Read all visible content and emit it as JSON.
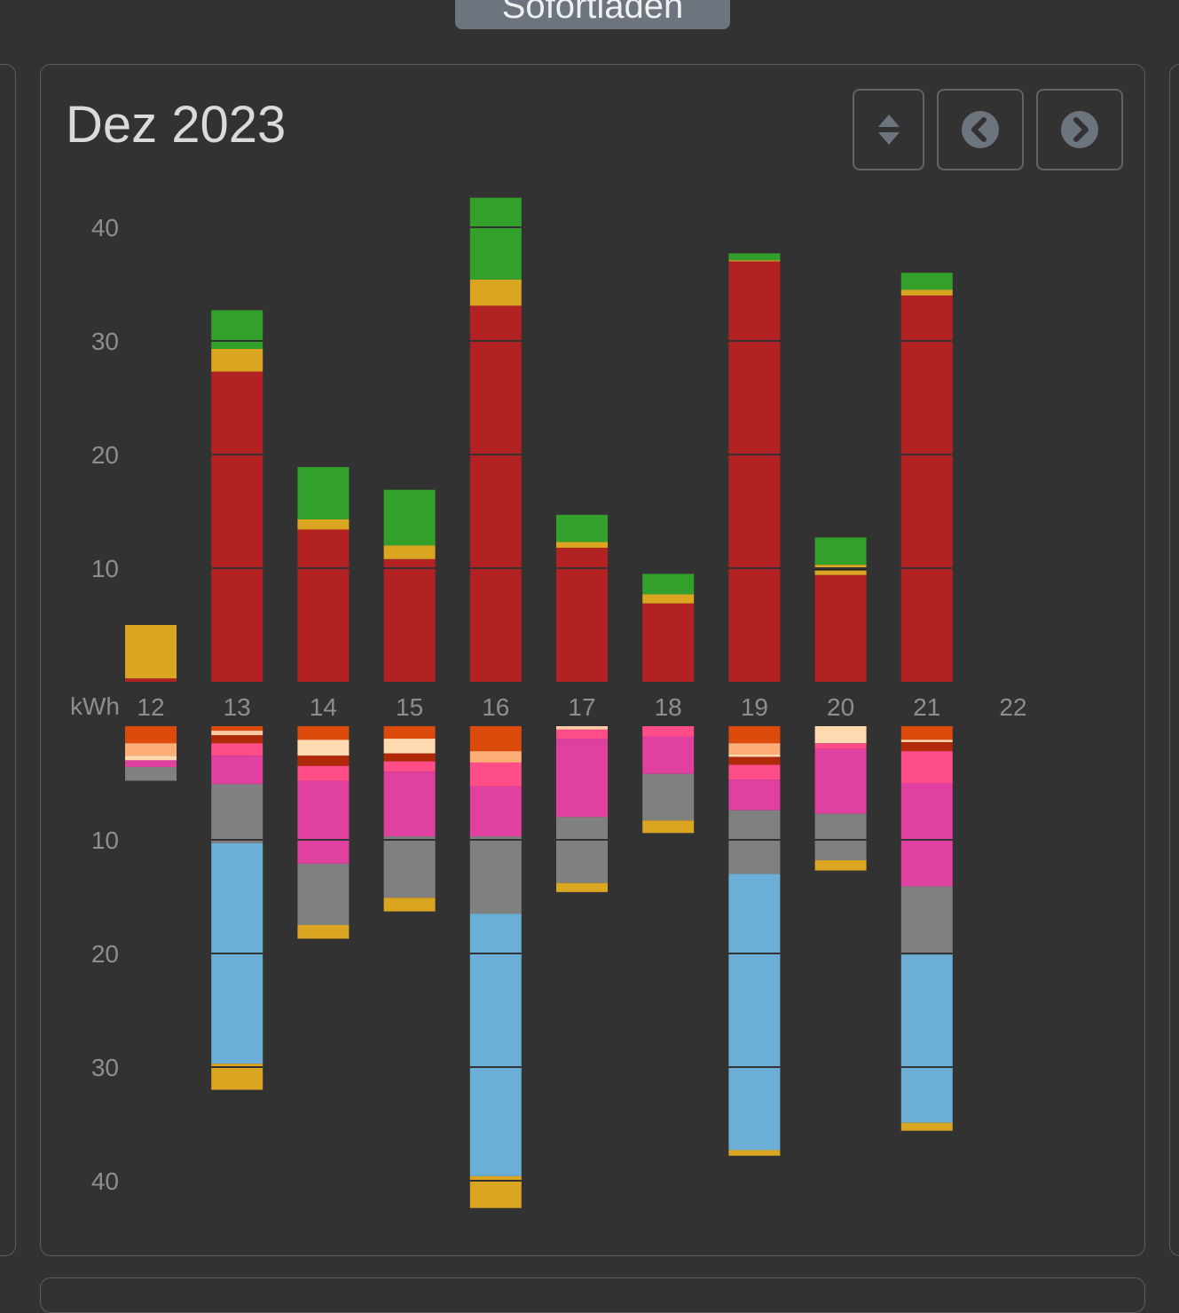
{
  "top_button": {
    "label": "Sofortladen"
  },
  "card": {
    "title": "Dez 2023",
    "icons": {
      "sort": "sort-icon",
      "prev": "chevron-left-circle-icon",
      "next": "chevron-right-circle-icon"
    }
  },
  "colors": {
    "background": "#323232",
    "button_icon": "#6c757d",
    "tick_text": "#8e8e8e",
    "grid_line": "#323232"
  },
  "chart_data": {
    "type": "bar",
    "stacked": true,
    "unit_label": "kWh",
    "categories": [
      "12",
      "13",
      "14",
      "15",
      "16",
      "17",
      "18",
      "19",
      "20",
      "21",
      "22"
    ],
    "positive_axis": {
      "ylim": [
        0,
        43
      ],
      "ticks": [
        10,
        20,
        30,
        40
      ]
    },
    "negative_axis": {
      "ylim": [
        0,
        43
      ],
      "ticks": [
        10,
        20,
        30,
        40
      ]
    },
    "grid": "inside-bars",
    "legend": "none",
    "upper_series": [
      {
        "color": "#b22222",
        "values": [
          0.3,
          27.3,
          13.4,
          10.8,
          33.1,
          11.8,
          6.9,
          37.0,
          9.4,
          34.0,
          0
        ]
      },
      {
        "color": "#daa520",
        "values": [
          4.7,
          2.0,
          0.9,
          1.2,
          2.3,
          0.5,
          0.8,
          0.1,
          0.4,
          0.5,
          0
        ]
      },
      {
        "color": "#222222",
        "values": [
          0,
          0,
          0,
          0,
          0,
          0,
          0,
          0,
          0.2,
          0,
          0
        ]
      },
      {
        "color": "#daa520",
        "values": [
          0,
          0,
          0,
          0,
          0,
          0,
          0,
          0,
          0.3,
          0,
          0
        ]
      },
      {
        "color": "#33a02c",
        "values": [
          0,
          3.4,
          4.6,
          4.9,
          7.2,
          2.4,
          1.8,
          0.6,
          2.4,
          1.5,
          0
        ]
      }
    ],
    "lower_series": [
      {
        "color": "#dc4a0c",
        "values": [
          1.5,
          0.4,
          1.2,
          1.1,
          2.2,
          0,
          0,
          1.5,
          0,
          1.2,
          0
        ]
      },
      {
        "color": "#ffcba4",
        "values": [
          0,
          0.4,
          0,
          0,
          0,
          0.3,
          0,
          0,
          0,
          0,
          0
        ]
      },
      {
        "color": "#ffad76",
        "values": [
          1.1,
          0,
          0,
          0,
          1.0,
          0,
          0,
          1.0,
          0,
          0,
          0
        ]
      },
      {
        "color": "#ffd9b0",
        "values": [
          0.4,
          0,
          1.4,
          1.3,
          0,
          0,
          0,
          0.2,
          1.5,
          0.2,
          0
        ]
      },
      {
        "color": "#b02a0a",
        "values": [
          0,
          0.7,
          0.9,
          0.7,
          0,
          0,
          0,
          0.7,
          0,
          0.8,
          0
        ]
      },
      {
        "color": "#ff4d88",
        "values": [
          0,
          1.1,
          1.3,
          0.9,
          2.1,
          0.8,
          0.9,
          1.3,
          0.5,
          2.8,
          0
        ]
      },
      {
        "color": "#e040a0",
        "values": [
          0.6,
          2.5,
          7.3,
          5.7,
          4.4,
          6.9,
          3.3,
          2.7,
          5.7,
          9.1,
          0
        ]
      },
      {
        "color": "#808080",
        "values": [
          1.2,
          5.2,
          5.4,
          5.4,
          6.8,
          5.8,
          4.1,
          5.6,
          4.1,
          6.0,
          0
        ]
      },
      {
        "color": "#6baed6",
        "values": [
          0,
          19.4,
          0,
          0,
          23.1,
          0,
          0,
          24.3,
          0,
          14.8,
          0
        ]
      },
      {
        "color": "#daa520",
        "values": [
          0,
          2.3,
          1.2,
          1.2,
          2.8,
          0.8,
          1.1,
          0.5,
          0.9,
          0.7,
          0
        ]
      }
    ]
  }
}
